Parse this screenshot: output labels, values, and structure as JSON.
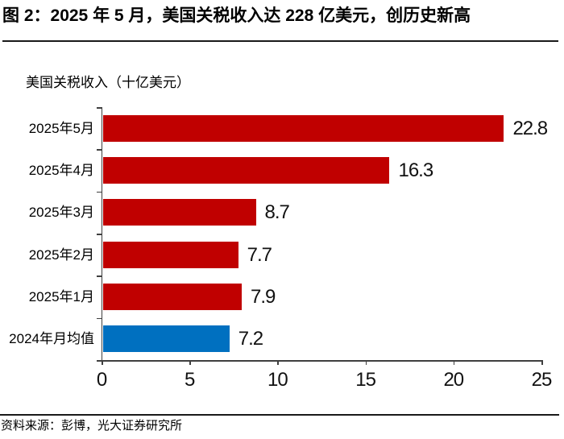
{
  "figure": {
    "title": "图 2：2025 年 5 月，美国关税收入达 228 亿美元，创历史新高",
    "source": "资料来源：彭博，光大证券研究所"
  },
  "chart_data": {
    "type": "bar",
    "orientation": "horizontal",
    "title": "美国关税收入（十亿美元）",
    "categories": [
      "2025年5月",
      "2025年4月",
      "2025年3月",
      "2025年2月",
      "2025年1月",
      "2024年月均值"
    ],
    "values": [
      22.8,
      16.3,
      8.7,
      7.7,
      7.9,
      7.2
    ],
    "value_labels": [
      "22.8",
      "16.3",
      "8.7",
      "7.7",
      "7.9",
      "7.2"
    ],
    "bar_colors": [
      "#c00000",
      "#c00000",
      "#c00000",
      "#c00000",
      "#c00000",
      "#0070c0"
    ],
    "xlim": [
      0,
      25
    ],
    "x_ticks": [
      0,
      5,
      10,
      15,
      20,
      25
    ],
    "grid": false,
    "legend": "none",
    "highlight_color": "#c00000",
    "baseline_color": "#0070c0",
    "axis_color": "#3f3f3f"
  }
}
